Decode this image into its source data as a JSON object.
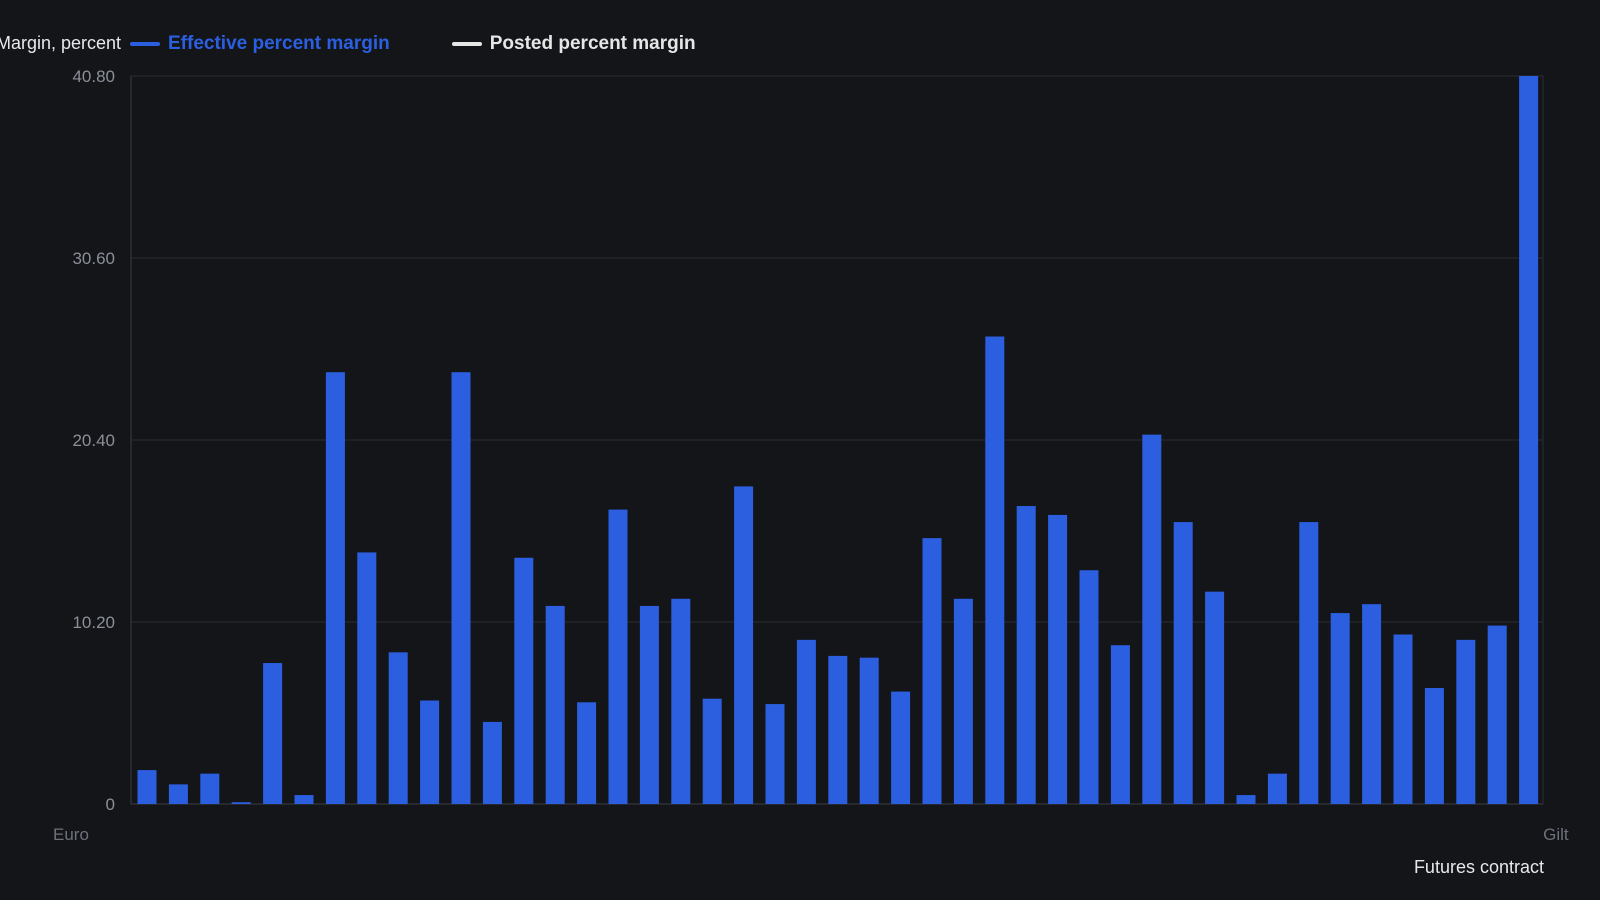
{
  "chart_data": {
    "type": "bar",
    "xlabel": "Futures contract",
    "ylabel": "Margin, percent",
    "ylim": [
      0,
      40.8
    ],
    "y_ticks": [
      "0",
      "10.20",
      "20.40",
      "30.60",
      "40.80"
    ],
    "grid": true,
    "legend_position": "top-left",
    "first_category_label": "Euro",
    "last_category_label": "Gilt",
    "series": [
      {
        "name": "Effective percent margin",
        "color": "#2b5fe0",
        "values": [
          1.9,
          1.1,
          1.7,
          0.1,
          7.9,
          0.5,
          24.2,
          14.1,
          8.5,
          5.8,
          24.2,
          4.6,
          13.8,
          11.1,
          5.7,
          16.5,
          11.1,
          11.5,
          5.9,
          17.8,
          5.6,
          9.2,
          8.3,
          8.2,
          6.3,
          14.9,
          11.5,
          26.2,
          16.7,
          16.2,
          13.1,
          8.9,
          20.7,
          15.8,
          11.9,
          0.5,
          1.7,
          15.8,
          10.7,
          11.2,
          9.5,
          6.5,
          9.2,
          10.0,
          40.8
        ]
      },
      {
        "name": "Posted percent margin",
        "color": "#e6e6e6",
        "values": []
      }
    ]
  }
}
